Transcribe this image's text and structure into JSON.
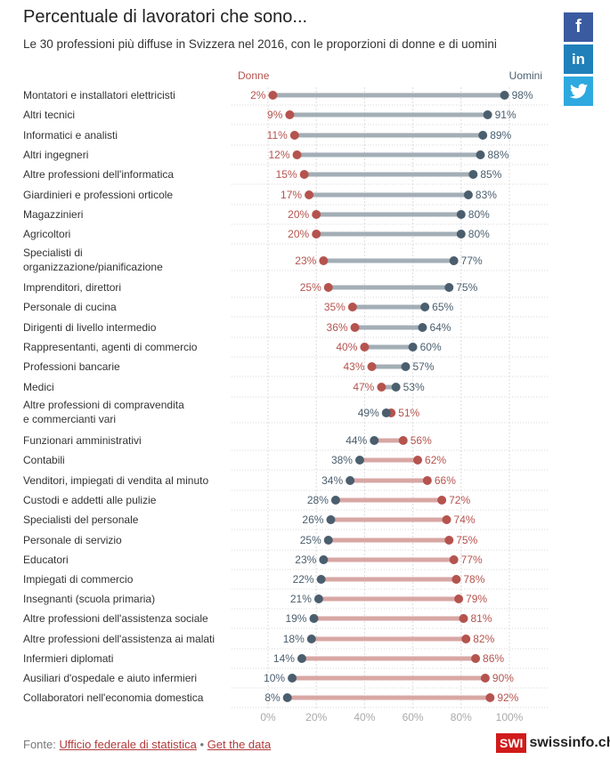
{
  "header": {
    "title": "Percentuale di lavoratori che sono...",
    "subtitle": "Le 30 professioni più diffuse in Svizzera nel 2016, con le proporzioni di donne e di uomini"
  },
  "share": {
    "facebook": "f",
    "linkedin": "in"
  },
  "footer": {
    "prefix": "Fonte:",
    "source_link": "Ufficio federale di statistica",
    "separator": "•",
    "data_link": "Get the data",
    "brand_logo": "SWI",
    "brand_name": "swissinfo.ch"
  },
  "chart_data": {
    "type": "dumbbell",
    "legend_women": "Donne",
    "legend_men": "Uomini",
    "xlim": [
      0,
      100
    ],
    "x_ticks": [
      "0%",
      "20%",
      "40%",
      "60%",
      "80%",
      "100%"
    ],
    "colors": {
      "women": "#b5534e",
      "men": "#4a5e6e",
      "bar_men_majority": "#a3aeb6",
      "bar_women_majority": "#d8a7a4"
    },
    "rows": [
      {
        "label": "Montatori e installatori elettricisti",
        "women": 2,
        "men": 98
      },
      {
        "label": "Altri tecnici",
        "women": 9,
        "men": 91
      },
      {
        "label": "Informatici e analisti",
        "women": 11,
        "men": 89
      },
      {
        "label": "Altri ingegneri",
        "women": 12,
        "men": 88
      },
      {
        "label": "Altre professioni dell'informatica",
        "women": 15,
        "men": 85
      },
      {
        "label": "Giardinieri e professioni orticole",
        "women": 17,
        "men": 83
      },
      {
        "label": "Magazzinieri",
        "women": 20,
        "men": 80
      },
      {
        "label": "Agricoltori",
        "women": 20,
        "men": 80
      },
      {
        "label": "Specialisti di organizzazione/pianificazione",
        "women": 23,
        "men": 77
      },
      {
        "label": "Imprenditori, direttori",
        "women": 25,
        "men": 75
      },
      {
        "label": "Personale di cucina",
        "women": 35,
        "men": 65
      },
      {
        "label": "Dirigenti di livello intermedio",
        "women": 36,
        "men": 64
      },
      {
        "label": "Rappresentanti, agenti di commercio",
        "women": 40,
        "men": 60
      },
      {
        "label": "Professioni bancarie",
        "women": 43,
        "men": 57
      },
      {
        "label": "Medici",
        "women": 47,
        "men": 53
      },
      {
        "label": "Altre professioni di compravendita e commercianti vari",
        "women": 51,
        "men": 49
      },
      {
        "label": "Funzionari amministrativi",
        "women": 56,
        "men": 44
      },
      {
        "label": "Contabili",
        "women": 62,
        "men": 38
      },
      {
        "label": "Venditori, impiegati di vendita al minuto",
        "women": 66,
        "men": 34
      },
      {
        "label": "Custodi e addetti alle pulizie",
        "women": 72,
        "men": 28
      },
      {
        "label": "Specialisti del personale",
        "women": 74,
        "men": 26
      },
      {
        "label": "Personale di servizio",
        "women": 75,
        "men": 25
      },
      {
        "label": "Educatori",
        "women": 77,
        "men": 23
      },
      {
        "label": "Impiegati di commercio",
        "women": 78,
        "men": 22
      },
      {
        "label": "Insegnanti (scuola primaria)",
        "women": 79,
        "men": 21
      },
      {
        "label": "Altre professioni dell'assistenza sociale",
        "women": 81,
        "men": 19
      },
      {
        "label": "Altre professioni dell'assistenza ai malati",
        "women": 82,
        "men": 18
      },
      {
        "label": "Infermieri diplomati",
        "women": 86,
        "men": 14
      },
      {
        "label": "Ausiliari d'ospedale e aiuto infermieri",
        "women": 90,
        "men": 10
      },
      {
        "label": "Collaboratori nell'economia domestica",
        "women": 92,
        "men": 8
      }
    ]
  }
}
